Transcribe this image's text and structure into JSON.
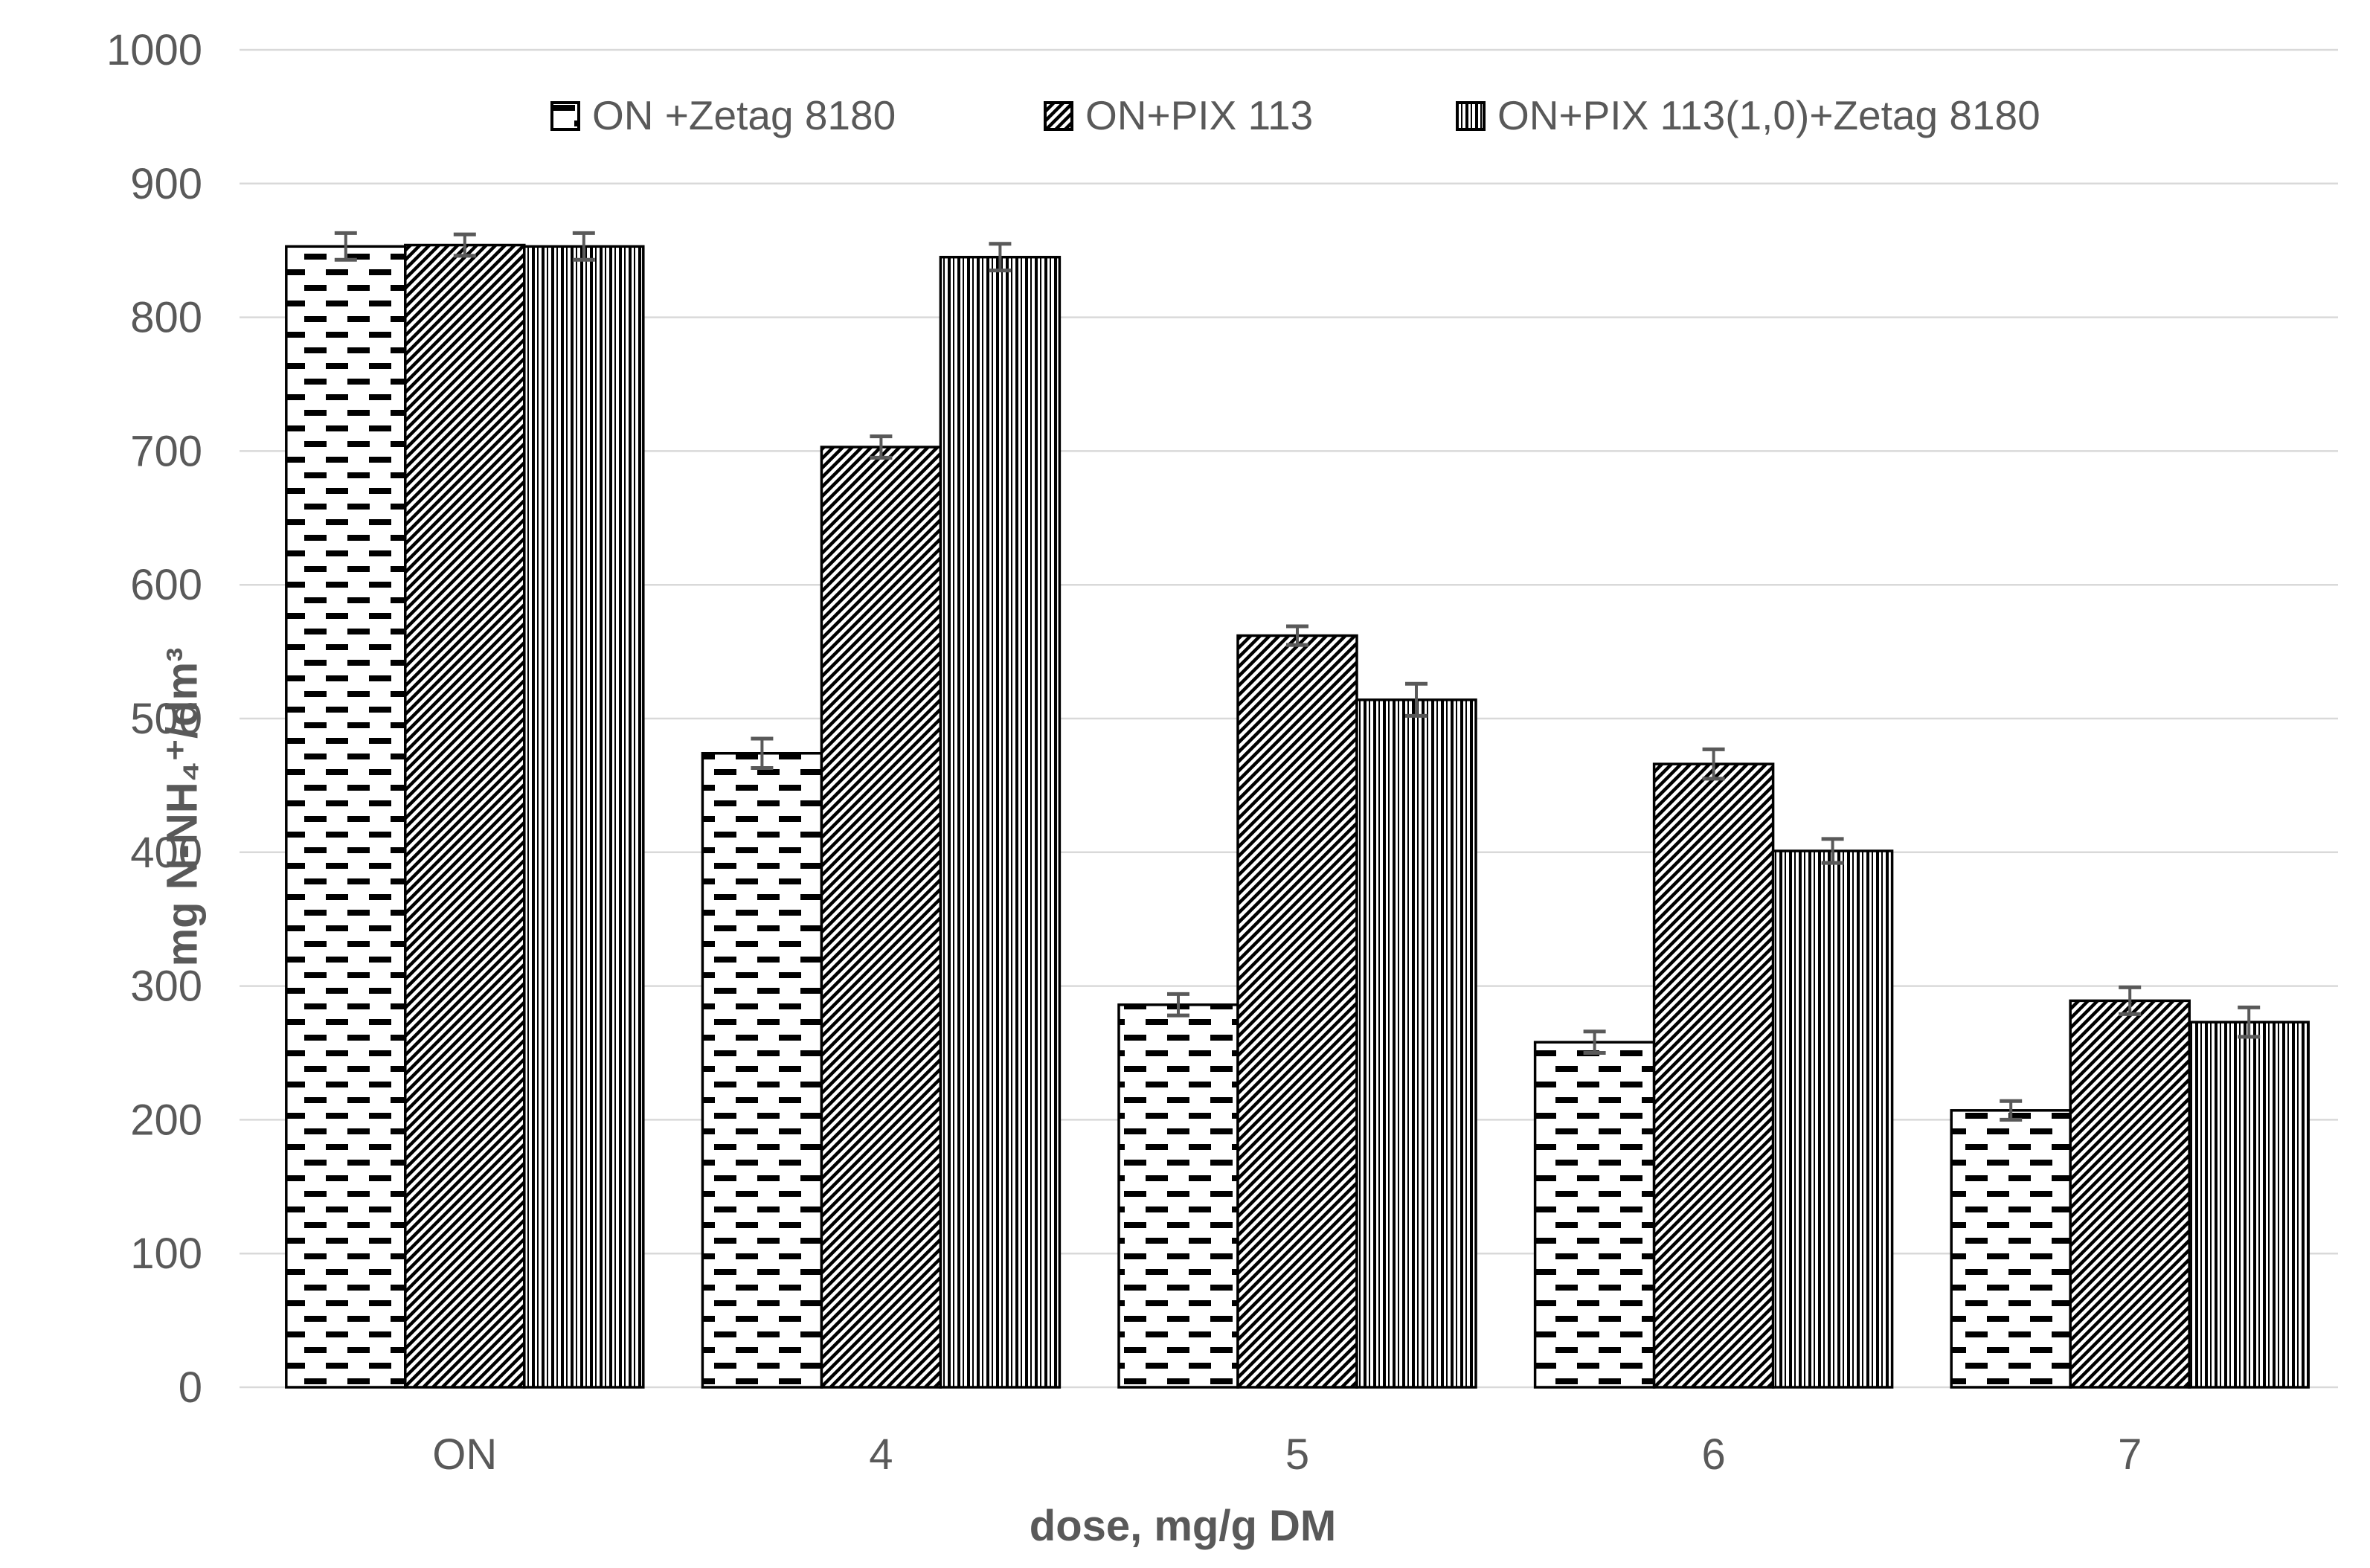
{
  "chart_data": {
    "type": "bar",
    "title": "",
    "xlabel": "dose, mg/g DM",
    "ylabel": "mg N-NH₄⁺/dm³",
    "categories": [
      "ON",
      "4",
      "5",
      "6",
      "7"
    ],
    "series": [
      {
        "name": "ON +Zetag 8180",
        "pattern": "horizontal-dash",
        "values": [
          853,
          474,
          286,
          258,
          207
        ],
        "errors": [
          10,
          11,
          8,
          8,
          7
        ]
      },
      {
        "name": "ON+PIX 113",
        "pattern": "diagonal-hatch",
        "values": [
          854,
          703,
          562,
          466,
          289
        ],
        "errors": [
          8,
          8,
          7,
          11,
          10
        ]
      },
      {
        "name": "ON+PIX 113(1,0)+Zetag 8180",
        "pattern": "vertical-stripe",
        "values": [
          853,
          845,
          514,
          401,
          273
        ],
        "errors": [
          10,
          10,
          12,
          9,
          11
        ]
      }
    ],
    "ylim": [
      0,
      1000
    ],
    "ytick_step": 100,
    "ytick_labels": [
      "0",
      "100",
      "200",
      "300",
      "400",
      "500",
      "600",
      "700",
      "800",
      "900",
      "1000"
    ],
    "grid": true,
    "legend_position": "top",
    "colors": {
      "axis_text": "#595959",
      "gridline": "#D9D9D9",
      "bar_fill": "#FFFFFF",
      "bar_stroke": "#000000",
      "pattern_ink": "#000000",
      "error_bar": "#595959"
    }
  }
}
